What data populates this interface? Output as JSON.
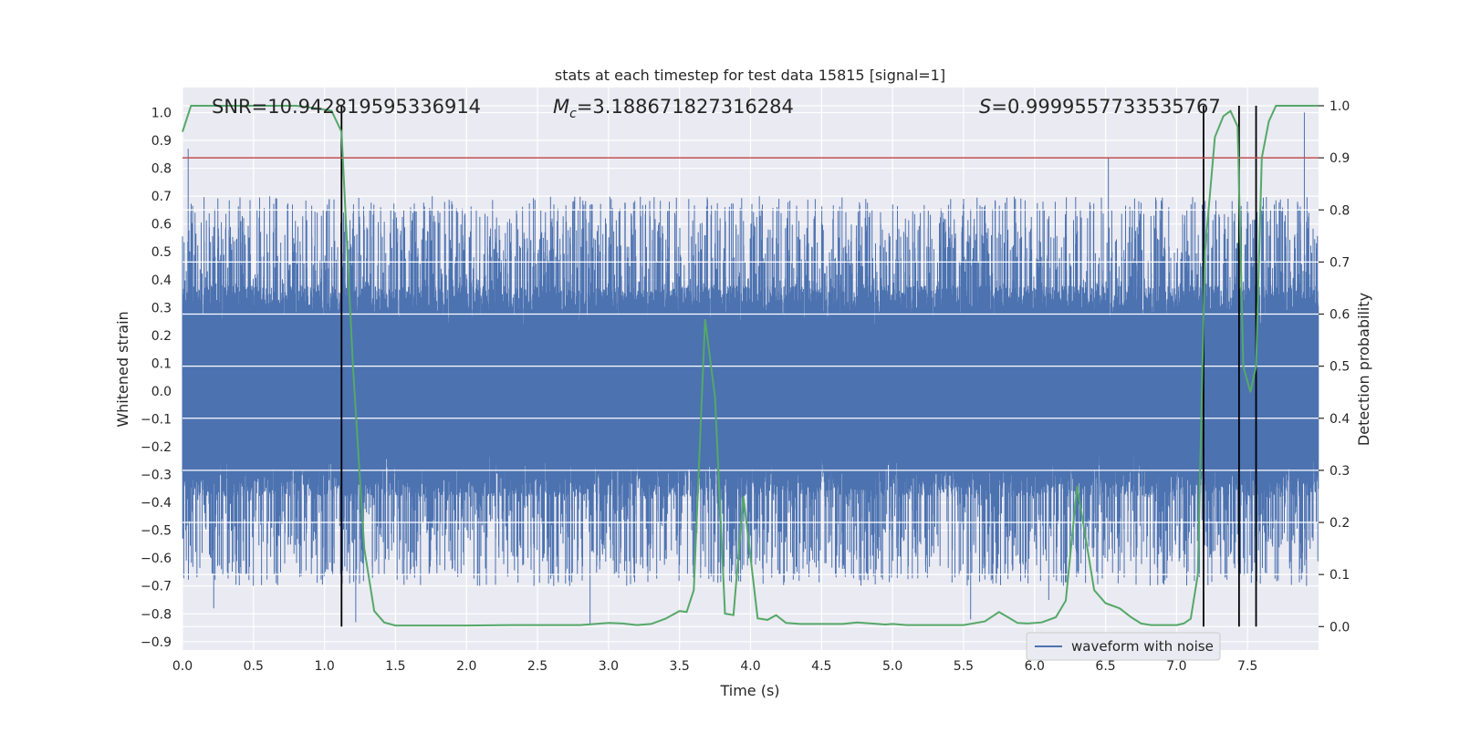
{
  "chart_data": {
    "type": "line",
    "title": "stats at each timestep for test data 15815 [signal=1]",
    "xlabel": "Time (s)",
    "ylabel_left": "Whitened strain",
    "ylabel_right": "Detection probability",
    "xlim": [
      0.0,
      8.0
    ],
    "ylim_left": [
      -0.93,
      1.09
    ],
    "ylim_right": [
      -0.045,
      1.035
    ],
    "x_ticks": [
      "0.0",
      "0.5",
      "1.0",
      "1.5",
      "2.0",
      "2.5",
      "3.0",
      "3.5",
      "4.0",
      "4.5",
      "5.0",
      "5.5",
      "6.0",
      "6.5",
      "7.0",
      "7.5"
    ],
    "x_tick_values": [
      0.0,
      0.5,
      1.0,
      1.5,
      2.0,
      2.5,
      3.0,
      3.5,
      4.0,
      4.5,
      5.0,
      5.5,
      6.0,
      6.5,
      7.0,
      7.5
    ],
    "y_ticks_left": [
      "1.0",
      "0.9",
      "0.8",
      "0.7",
      "0.6",
      "0.5",
      "0.4",
      "0.3",
      "0.2",
      "0.1",
      "0.0",
      "−0.1",
      "−0.2",
      "−0.3",
      "−0.4",
      "−0.5",
      "−0.6",
      "−0.7",
      "−0.8",
      "−0.9"
    ],
    "y_tick_values_left": [
      1.0,
      0.9,
      0.8,
      0.7,
      0.6,
      0.5,
      0.4,
      0.3,
      0.2,
      0.1,
      0.0,
      -0.1,
      -0.2,
      -0.3,
      -0.4,
      -0.5,
      -0.6,
      -0.7,
      -0.8,
      -0.9
    ],
    "y_ticks_right": [
      "1.0",
      "0.9",
      "0.8",
      "0.7",
      "0.6",
      "0.5",
      "0.4",
      "0.3",
      "0.2",
      "0.1",
      "0.0"
    ],
    "y_tick_values_right": [
      1.0,
      0.9,
      0.8,
      0.7,
      0.6,
      0.5,
      0.4,
      0.3,
      0.2,
      0.1,
      0.0
    ],
    "annotations": {
      "snr": "SNR=10.942819595336914",
      "mc_prefix": "M",
      "mc_sub": "c",
      "mc_value": "=3.188671827316284",
      "s_prefix": "S",
      "s_value": "=0.9999557733535767"
    },
    "threshold": 0.9,
    "threshold_color": "#c44e52",
    "vertical_markers": [
      1.12,
      7.19,
      7.44,
      7.56
    ],
    "legend": {
      "placement": "lower-right",
      "entries": [
        {
          "label": "waveform with noise",
          "color": "#4c72b0"
        }
      ]
    },
    "series": [
      {
        "name": "waveform with noise",
        "axis": "left",
        "color": "#4c72b0",
        "style": "dense noisy waveform",
        "core_amplitude": 0.38,
        "typical_peak": [
          -0.7,
          0.7
        ],
        "notable_peaks": [
          {
            "x": 0.04,
            "y": 0.87
          },
          {
            "x": 6.52,
            "y": 0.84
          },
          {
            "x": 7.9,
            "y": 1.0
          },
          {
            "x": 0.22,
            "y": -0.78
          },
          {
            "x": 1.22,
            "y": -0.83
          },
          {
            "x": 2.87,
            "y": -0.84
          },
          {
            "x": 5.55,
            "y": -0.82
          },
          {
            "x": 6.1,
            "y": -0.75
          }
        ]
      },
      {
        "axis": "right",
        "color": "#55a868",
        "x": [
          0.0,
          0.06,
          0.2,
          0.4,
          0.6,
          0.8,
          0.95,
          1.05,
          1.12,
          1.2,
          1.28,
          1.35,
          1.42,
          1.5,
          1.7,
          2.0,
          2.3,
          2.6,
          2.8,
          3.0,
          3.1,
          3.2,
          3.3,
          3.4,
          3.5,
          3.55,
          3.6,
          3.68,
          3.75,
          3.82,
          3.88,
          3.95,
          4.05,
          4.12,
          4.18,
          4.25,
          4.35,
          4.5,
          4.65,
          4.75,
          4.85,
          4.95,
          5.0,
          5.1,
          5.3,
          5.5,
          5.65,
          5.75,
          5.82,
          5.88,
          5.95,
          6.05,
          6.15,
          6.22,
          6.3,
          6.36,
          6.42,
          6.5,
          6.6,
          6.68,
          6.75,
          6.82,
          6.9,
          7.0,
          7.05,
          7.1,
          7.15,
          7.2,
          7.27,
          7.33,
          7.38,
          7.43,
          7.47,
          7.52,
          7.56,
          7.6,
          7.65,
          7.7,
          7.75,
          7.85,
          8.0
        ],
        "y": [
          0.95,
          1.0,
          1.0,
          1.0,
          1.0,
          1.0,
          0.995,
          0.99,
          0.95,
          0.5,
          0.15,
          0.03,
          0.008,
          0.002,
          0.002,
          0.002,
          0.003,
          0.003,
          0.003,
          0.007,
          0.006,
          0.003,
          0.005,
          0.015,
          0.03,
          0.028,
          0.07,
          0.59,
          0.44,
          0.025,
          0.022,
          0.25,
          0.016,
          0.013,
          0.022,
          0.007,
          0.005,
          0.005,
          0.005,
          0.008,
          0.006,
          0.004,
          0.005,
          0.003,
          0.003,
          0.003,
          0.01,
          0.028,
          0.017,
          0.007,
          0.006,
          0.008,
          0.018,
          0.05,
          0.27,
          0.17,
          0.07,
          0.045,
          0.035,
          0.018,
          0.006,
          0.003,
          0.003,
          0.003,
          0.006,
          0.015,
          0.1,
          0.72,
          0.94,
          0.98,
          0.99,
          0.96,
          0.5,
          0.45,
          0.5,
          0.9,
          0.97,
          1.0,
          1.0,
          1.0,
          1.0
        ]
      }
    ]
  }
}
